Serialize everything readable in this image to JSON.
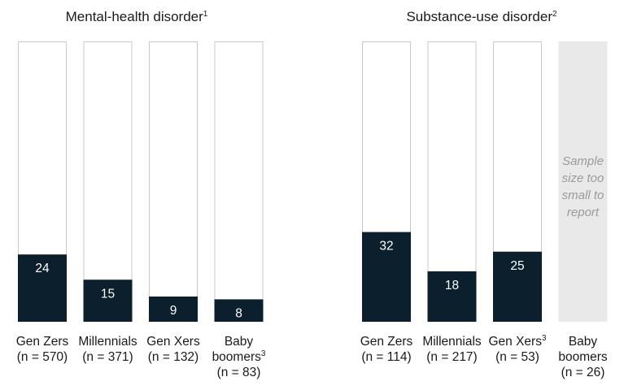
{
  "chart_data": [
    {
      "type": "bar",
      "title": "Mental-health disorder",
      "title_sup": "1",
      "ylim": [
        0,
        100
      ],
      "grid": false,
      "categories": [
        {
          "line1": "Gen Zers",
          "line1_sup": "",
          "line2": "(n = 570)",
          "line3": ""
        },
        {
          "line1": "Millennials",
          "line1_sup": "",
          "line2": "(n = 371)",
          "line3": ""
        },
        {
          "line1": "Gen Xers",
          "line1_sup": "",
          "line2": "(n = 132)",
          "line3": ""
        },
        {
          "line1": "Baby",
          "line1_sup": "",
          "line2": "boomers",
          "line2_sup": "3",
          "line3": "(n = 83)"
        }
      ],
      "values": [
        24,
        15,
        9,
        8
      ],
      "bar_color": "#0b1f2c"
    },
    {
      "type": "bar",
      "title": "Substance-use disorder",
      "title_sup": "2",
      "ylim": [
        0,
        100
      ],
      "grid": false,
      "categories": [
        {
          "line1": "Gen Zers",
          "line1_sup": "",
          "line2": "(n = 114)",
          "line3": ""
        },
        {
          "line1": "Millennials",
          "line1_sup": "",
          "line2": "(n = 217)",
          "line3": ""
        },
        {
          "line1": "Gen Xers",
          "line1_sup": "3",
          "line2": "(n = 53)",
          "line3": ""
        },
        {
          "line1": "Baby",
          "line1_sup": "",
          "line2": "boomers",
          "line3": "(n = 26)"
        }
      ],
      "values": [
        32,
        18,
        25,
        null
      ],
      "not_reported_note": [
        "Sample",
        "size too",
        "small to",
        "report"
      ],
      "bar_color": "#0b1f2c",
      "unreported_color": "#e9e9e9"
    }
  ],
  "colors": {
    "outline": "#c9c9c9",
    "bar": "#0b1f2c",
    "text": "#1a1a1a",
    "note": "#9a9a9a"
  }
}
